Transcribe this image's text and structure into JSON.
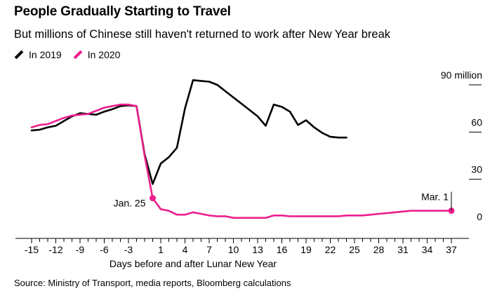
{
  "header": {
    "title": "People Gradually Starting to Travel",
    "subtitle": "But millions of Chinese still haven't returned to work after New Year break"
  },
  "legend": [
    {
      "label": "In 2019",
      "color": "#000000"
    },
    {
      "label": "In 2020",
      "color": "#ec1e8d"
    }
  ],
  "source": "Source: Ministry of Transport, media reports, Bloomberg calculations",
  "chart_data": {
    "type": "line",
    "title": "People Gradually Starting to Travel",
    "subtitle": "But millions of Chinese still haven't returned to work after New Year break",
    "xlabel": "Days before and after Lunar New Year",
    "ylabel": "",
    "xlim": [
      -16,
      38
    ],
    "ylim": [
      0,
      90
    ],
    "x_ticks": [
      -15,
      -12,
      -9,
      -6,
      -3,
      1,
      4,
      7,
      10,
      13,
      16,
      19,
      22,
      25,
      28,
      31,
      34,
      37
    ],
    "y_ticks": [
      {
        "value": 0,
        "label": "0"
      },
      {
        "value": 30,
        "label": "30"
      },
      {
        "value": 60,
        "label": "60"
      },
      {
        "value": 90,
        "label": "90 million"
      }
    ],
    "grid": false,
    "legend_position": "top-left",
    "series": [
      {
        "name": "In 2019",
        "color": "#000000",
        "points": [
          [
            -15,
            61
          ],
          [
            -14,
            61.5
          ],
          [
            -13,
            63
          ],
          [
            -12,
            64
          ],
          [
            -11,
            67
          ],
          [
            -10,
            70
          ],
          [
            -9,
            72
          ],
          [
            -8,
            71.5
          ],
          [
            -7,
            71
          ],
          [
            -6,
            73
          ],
          [
            -5,
            74.5
          ],
          [
            -4,
            76.5
          ],
          [
            -3,
            77
          ],
          [
            -2,
            76.5
          ],
          [
            -1,
            46
          ],
          [
            0,
            27
          ],
          [
            1,
            40
          ],
          [
            2,
            44
          ],
          [
            3,
            50
          ],
          [
            4,
            75
          ],
          [
            5,
            93
          ],
          [
            6,
            92.5
          ],
          [
            7,
            92
          ],
          [
            8,
            90
          ],
          [
            9,
            86
          ],
          [
            10,
            82
          ],
          [
            11,
            78
          ],
          [
            12,
            74
          ],
          [
            13,
            70
          ],
          [
            14,
            64
          ],
          [
            15,
            77.5
          ],
          [
            16,
            76
          ],
          [
            17,
            73
          ],
          [
            18,
            64.5
          ],
          [
            19,
            67.5
          ],
          [
            20,
            63
          ],
          [
            21,
            59.5
          ],
          [
            22,
            57
          ],
          [
            23,
            56.5
          ],
          [
            24,
            56.5
          ]
        ]
      },
      {
        "name": "In 2020",
        "color": "#ec1e8d",
        "points": [
          [
            -15,
            63
          ],
          [
            -14,
            64.5
          ],
          [
            -13,
            65
          ],
          [
            -12,
            67
          ],
          [
            -11,
            69
          ],
          [
            -10,
            70.5
          ],
          [
            -9,
            71
          ],
          [
            -8,
            71.5
          ],
          [
            -7,
            73.5
          ],
          [
            -6,
            75.5
          ],
          [
            -5,
            76.5
          ],
          [
            -4,
            77.5
          ],
          [
            -3,
            77.5
          ],
          [
            -2,
            76.5
          ],
          [
            -1,
            45
          ],
          [
            0,
            18
          ],
          [
            1,
            11
          ],
          [
            2,
            10
          ],
          [
            3,
            7.5
          ],
          [
            4,
            7.5
          ],
          [
            5,
            9
          ],
          [
            6,
            8
          ],
          [
            7,
            7
          ],
          [
            8,
            6.5
          ],
          [
            9,
            6.5
          ],
          [
            10,
            5.5
          ],
          [
            11,
            5.5
          ],
          [
            12,
            5.5
          ],
          [
            13,
            5.5
          ],
          [
            14,
            5.5
          ],
          [
            15,
            7
          ],
          [
            16,
            7
          ],
          [
            17,
            6.5
          ],
          [
            18,
            6.5
          ],
          [
            19,
            6.5
          ],
          [
            20,
            6.5
          ],
          [
            21,
            6.5
          ],
          [
            22,
            6.5
          ],
          [
            23,
            6.5
          ],
          [
            24,
            7
          ],
          [
            25,
            7
          ],
          [
            26,
            7
          ],
          [
            27,
            7.5
          ],
          [
            28,
            8
          ],
          [
            29,
            8.5
          ],
          [
            30,
            9
          ],
          [
            31,
            9.5
          ],
          [
            32,
            10
          ],
          [
            33,
            10
          ],
          [
            34,
            10
          ],
          [
            35,
            10
          ],
          [
            36,
            10
          ],
          [
            37,
            10
          ]
        ]
      }
    ],
    "annotations": [
      {
        "series": 1,
        "x": 0,
        "y": 18,
        "label": "Jan. 25"
      },
      {
        "series": 1,
        "x": 37,
        "y": 10,
        "label": "Mar. 1"
      }
    ]
  }
}
